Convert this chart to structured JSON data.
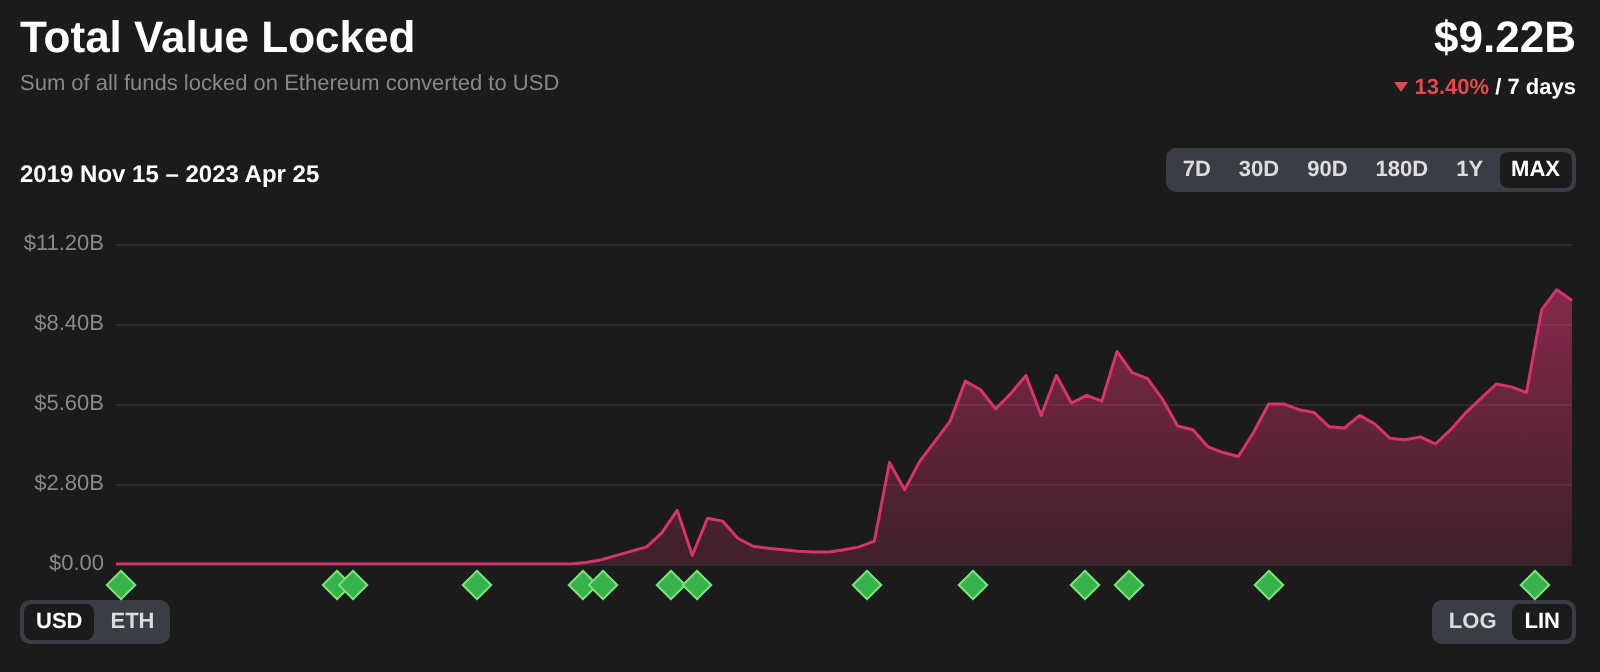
{
  "chart_data": {
    "type": "area",
    "title": "Total Value Locked",
    "subtitle": "Sum of all funds locked on Ethereum converted to USD",
    "annotations": [
      "$9.22B",
      "13.40%",
      "/ 7 days",
      "2019 Nov 15 – 2023 Apr 25",
      "7D",
      "30D",
      "90D",
      "180D",
      "1Y",
      "MAX",
      "USD",
      "ETH",
      "LOG",
      "LIN"
    ],
    "categories": [
      null,
      null,
      null,
      null,
      null,
      null,
      null,
      null,
      null,
      null,
      null,
      null,
      null,
      null,
      null,
      null,
      null,
      null,
      null,
      null,
      null,
      null,
      null,
      null,
      null,
      null,
      null,
      null,
      null,
      null,
      null,
      null,
      null,
      null,
      null,
      null,
      null,
      null,
      null,
      null,
      null,
      null,
      null,
      null,
      null,
      null,
      null,
      null,
      null,
      null,
      null,
      null,
      null,
      null,
      null,
      null,
      null,
      null,
      null,
      null,
      null,
      null,
      null,
      null,
      null,
      null,
      null,
      null,
      null,
      null,
      null,
      null,
      null,
      null,
      null,
      null,
      null,
      null,
      null,
      null,
      null,
      null,
      null,
      null,
      null,
      null,
      null,
      null,
      null,
      null,
      null,
      null,
      null,
      null,
      null,
      null,
      null
    ],
    "series": [
      {
        "color": "#d8336e",
        "values": [
          0,
          0,
          0,
          0,
          0,
          0,
          0,
          0,
          0,
          0,
          0,
          0,
          0,
          0,
          0,
          0,
          0,
          0,
          0,
          0,
          0,
          0,
          0,
          0,
          0,
          0,
          0,
          0,
          0,
          0,
          0,
          0.05,
          0.15,
          0.3,
          0.45,
          0.6,
          1.1,
          1.88,
          0.3,
          1.6,
          1.5,
          0.9,
          0.62,
          0.55,
          0.5,
          0.45,
          0.42,
          0.42,
          0.5,
          0.6,
          0.8,
          3.55,
          2.6,
          3.6,
          4.29,
          5.0,
          6.4,
          6.1,
          5.43,
          5.97,
          6.6,
          5.2,
          6.6,
          5.63,
          5.9,
          5.7,
          7.44,
          6.7,
          6.5,
          5.77,
          4.83,
          4.7,
          4.1,
          3.9,
          3.76,
          4.6,
          5.6,
          5.6,
          5.4,
          5.3,
          4.8,
          4.76,
          5.2,
          4.9,
          4.4,
          4.35,
          4.45,
          4.2,
          4.7,
          5.3,
          5.8,
          6.3,
          6.2,
          6.0,
          8.9,
          9.6,
          9.22
        ]
      }
    ],
    "ylim": [
      0,
      11.2
    ],
    "yticks": [
      {
        "value": 0,
        "label": "$0.00"
      },
      {
        "value": 2.8,
        "label": "$2.80B"
      },
      {
        "value": 5.6,
        "label": "$5.60B"
      },
      {
        "value": 8.4,
        "label": "$8.40B"
      },
      {
        "value": 11.2,
        "label": "$11.20B"
      }
    ],
    "tick_labels": "y",
    "grid": "y"
  }
}
